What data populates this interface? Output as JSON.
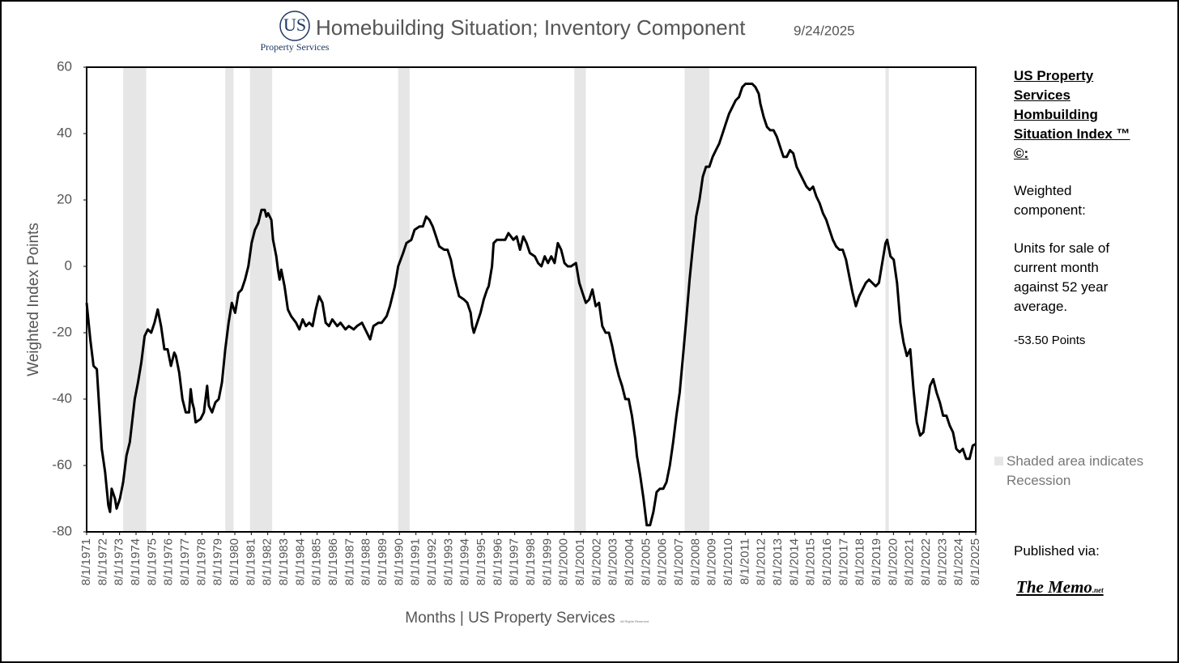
{
  "logo": {
    "mark": "US",
    "name": "Property Services"
  },
  "chart_data": {
    "type": "line",
    "title": "Homebuilding Situation; Inventory Component",
    "date": "9/24/2025",
    "xlabel": "Months | US Property Services",
    "xlabel_note": "All Rights Reserved",
    "ylabel": "Weighted Index Points",
    "xlim": [
      1971.58,
      2025.58
    ],
    "ylim": [
      -80,
      60
    ],
    "yticks": [
      60,
      40,
      20,
      0,
      -20,
      -40,
      -60,
      -80
    ],
    "xticks": [
      {
        "value": 1971.58,
        "label": "8/1/1971"
      },
      {
        "value": 1972.58,
        "label": "8/1/1972"
      },
      {
        "value": 1973.58,
        "label": "8/1/1973"
      },
      {
        "value": 1974.58,
        "label": "8/1/1974"
      },
      {
        "value": 1975.58,
        "label": "8/1/1975"
      },
      {
        "value": 1976.58,
        "label": "8/1/1976"
      },
      {
        "value": 1977.58,
        "label": "8/1/1977"
      },
      {
        "value": 1978.58,
        "label": "8/1/1978"
      },
      {
        "value": 1979.58,
        "label": "8/1/1979"
      },
      {
        "value": 1980.58,
        "label": "8/1/1980"
      },
      {
        "value": 1981.58,
        "label": "8/1/1981"
      },
      {
        "value": 1982.58,
        "label": "8/1/1982"
      },
      {
        "value": 1983.58,
        "label": "8/1/1983"
      },
      {
        "value": 1984.58,
        "label": "8/1/1984"
      },
      {
        "value": 1985.58,
        "label": "8/1/1985"
      },
      {
        "value": 1986.58,
        "label": "8/1/1986"
      },
      {
        "value": 1987.58,
        "label": "8/1/1987"
      },
      {
        "value": 1988.58,
        "label": "8/1/1988"
      },
      {
        "value": 1989.58,
        "label": "8/1/1989"
      },
      {
        "value": 1990.58,
        "label": "8/1/1990"
      },
      {
        "value": 1991.58,
        "label": "8/1/1991"
      },
      {
        "value": 1992.58,
        "label": "8/1/1992"
      },
      {
        "value": 1993.58,
        "label": "8/1/1993"
      },
      {
        "value": 1994.58,
        "label": "8/1/1994"
      },
      {
        "value": 1995.58,
        "label": "8/1/1995"
      },
      {
        "value": 1996.58,
        "label": "8/1/1996"
      },
      {
        "value": 1997.58,
        "label": "8/1/1997"
      },
      {
        "value": 1998.58,
        "label": "8/1/1998"
      },
      {
        "value": 1999.58,
        "label": "8/1/1999"
      },
      {
        "value": 2000.58,
        "label": "8/1/2000"
      },
      {
        "value": 2001.58,
        "label": "8/1/2001"
      },
      {
        "value": 2002.58,
        "label": "8/1/2002"
      },
      {
        "value": 2003.58,
        "label": "8/1/2003"
      },
      {
        "value": 2004.58,
        "label": "8/1/2004"
      },
      {
        "value": 2005.58,
        "label": "8/1/2005"
      },
      {
        "value": 2006.58,
        "label": "8/1/2006"
      },
      {
        "value": 2007.58,
        "label": "8/1/2007"
      },
      {
        "value": 2008.58,
        "label": "8/1/2008"
      },
      {
        "value": 2009.58,
        "label": "8/1/2009"
      },
      {
        "value": 2010.58,
        "label": "8/1/2010"
      },
      {
        "value": 2011.58,
        "label": "8/1/2011"
      },
      {
        "value": 2012.58,
        "label": "8/1/2012"
      },
      {
        "value": 2013.58,
        "label": "8/1/2013"
      },
      {
        "value": 2014.58,
        "label": "8/1/2014"
      },
      {
        "value": 2015.58,
        "label": "8/1/2015"
      },
      {
        "value": 2016.58,
        "label": "8/1/2016"
      },
      {
        "value": 2017.58,
        "label": "8/1/2017"
      },
      {
        "value": 2018.58,
        "label": "8/1/2018"
      },
      {
        "value": 2019.58,
        "label": "8/1/2019"
      },
      {
        "value": 2020.58,
        "label": "8/1/2020"
      },
      {
        "value": 2021.58,
        "label": "8/1/2021"
      },
      {
        "value": 2022.58,
        "label": "8/1/2022"
      },
      {
        "value": 2023.58,
        "label": "8/1/2023"
      },
      {
        "value": 2024.58,
        "label": "8/1/2024"
      },
      {
        "value": 2025.58,
        "label": "8/1/2025"
      }
    ],
    "recessions": [
      [
        1973.8,
        1975.2
      ],
      [
        1980.0,
        1980.5
      ],
      [
        1981.5,
        1982.85
      ],
      [
        1990.5,
        1991.2
      ],
      [
        2001.2,
        2001.9
      ],
      [
        2007.9,
        2009.4
      ],
      [
        2020.1,
        2020.3
      ]
    ],
    "recession_color": "#e6e6e6",
    "legend": "Shaded area indicates Recession",
    "x": [
      1971.58,
      1971.8,
      1972.0,
      1972.2,
      1972.5,
      1972.7,
      1972.9,
      1973.0,
      1973.1,
      1973.3,
      1973.4,
      1973.6,
      1973.8,
      1974.0,
      1974.2,
      1974.5,
      1974.7,
      1974.9,
      1975.1,
      1975.3,
      1975.5,
      1975.7,
      1975.9,
      1976.1,
      1976.3,
      1976.5,
      1976.7,
      1976.9,
      1977.0,
      1977.2,
      1977.4,
      1977.6,
      1977.8,
      1977.9,
      1978.0,
      1978.1,
      1978.2,
      1978.5,
      1978.7,
      1978.9,
      1979.0,
      1979.2,
      1979.4,
      1979.6,
      1979.8,
      1980.0,
      1980.2,
      1980.4,
      1980.6,
      1980.8,
      1981.0,
      1981.2,
      1981.4,
      1981.6,
      1981.8,
      1982.0,
      1982.2,
      1982.4,
      1982.5,
      1982.6,
      1982.8,
      1982.9,
      1983.1,
      1983.2,
      1983.3,
      1983.4,
      1983.6,
      1983.8,
      1984.0,
      1984.3,
      1984.5,
      1984.7,
      1984.9,
      1985.1,
      1985.3,
      1985.5,
      1985.7,
      1985.9,
      1986.1,
      1986.3,
      1986.5,
      1986.8,
      1987.0,
      1987.3,
      1987.5,
      1987.8,
      1988.0,
      1988.3,
      1988.6,
      1988.8,
      1989.0,
      1989.3,
      1989.5,
      1989.8,
      1990.0,
      1990.3,
      1990.5,
      1990.8,
      1991.0,
      1991.3,
      1991.5,
      1991.8,
      1992.0,
      1992.2,
      1992.4,
      1992.6,
      1992.8,
      1993.0,
      1993.3,
      1993.5,
      1993.7,
      1993.9,
      1994.1,
      1994.2,
      1994.5,
      1994.7,
      1994.9,
      1995.0,
      1995.1,
      1995.3,
      1995.5,
      1995.7,
      1995.9,
      1996.0,
      1996.2,
      1996.3,
      1996.5,
      1996.8,
      1997.0,
      1997.2,
      1997.5,
      1997.7,
      1997.9,
      1998.1,
      1998.3,
      1998.5,
      1998.8,
      1999.0,
      1999.2,
      1999.4,
      1999.6,
      1999.8,
      2000.0,
      2000.2,
      2000.4,
      2000.6,
      2000.8,
      2001.0,
      2001.3,
      2001.5,
      2001.7,
      2001.9,
      2002.1,
      2002.3,
      2002.5,
      2002.7,
      2002.9,
      2003.1,
      2003.3,
      2003.5,
      2003.7,
      2003.9,
      2004.1,
      2004.3,
      2004.5,
      2004.7,
      2004.9,
      2005.0,
      2005.2,
      2005.4,
      2005.6,
      2005.8,
      2006.0,
      2006.2,
      2006.4,
      2006.6,
      2006.8,
      2007.0,
      2007.2,
      2007.4,
      2007.6,
      2007.8,
      2008.0,
      2008.2,
      2008.4,
      2008.6,
      2008.8,
      2009.0,
      2009.2,
      2009.4,
      2009.6,
      2009.8,
      2010.0,
      2010.2,
      2010.4,
      2010.6,
      2010.8,
      2011.0,
      2011.2,
      2011.4,
      2011.6,
      2011.8,
      2012.0,
      2012.2,
      2012.4,
      2012.5,
      2012.7,
      2012.9,
      2013.1,
      2013.3,
      2013.5,
      2013.7,
      2013.9,
      2014.1,
      2014.3,
      2014.5,
      2014.7,
      2014.9,
      2015.1,
      2015.3,
      2015.5,
      2015.7,
      2015.9,
      2016.1,
      2016.3,
      2016.5,
      2016.7,
      2016.9,
      2017.1,
      2017.3,
      2017.5,
      2017.7,
      2017.9,
      2018.1,
      2018.3,
      2018.5,
      2018.7,
      2018.9,
      2019.1,
      2019.3,
      2019.5,
      2019.7,
      2019.9,
      2020.1,
      2020.2,
      2020.4,
      2020.6,
      2020.8,
      2021.0,
      2021.2,
      2021.4,
      2021.6,
      2021.8,
      2022.0,
      2022.2,
      2022.4,
      2022.6,
      2022.8,
      2023.0,
      2023.2,
      2023.4,
      2023.6,
      2023.8,
      2024.0,
      2024.2,
      2024.4,
      2024.6,
      2024.8,
      2025.0,
      2025.2,
      2025.4,
      2025.58
    ],
    "series": [
      {
        "name": "Inventory Component",
        "color": "#000000",
        "values": [
          -11,
          -22,
          -30,
          -31,
          -55,
          -62,
          -72,
          -74,
          -67,
          -70,
          -73,
          -70,
          -65,
          -57,
          -53,
          -40,
          -35,
          -29,
          -21,
          -19,
          -20,
          -17,
          -13,
          -18,
          -25,
          -25,
          -30,
          -26,
          -27,
          -32,
          -40,
          -44,
          -44,
          -37,
          -41,
          -43,
          -47,
          -46,
          -44,
          -36,
          -42,
          -44,
          -41,
          -40,
          -35,
          -25,
          -17,
          -11,
          -14,
          -8,
          -7,
          -4,
          0,
          7,
          11,
          13,
          17,
          17,
          15,
          16,
          14,
          8,
          3,
          -1,
          -4,
          -1,
          -6,
          -13,
          -15,
          -17,
          -19,
          -16,
          -18,
          -17,
          -18,
          -13,
          -9,
          -11,
          -17,
          -18,
          -16,
          -18,
          -17,
          -19,
          -18,
          -19,
          -18,
          -17,
          -20,
          -22,
          -18,
          -17,
          -17,
          -15,
          -12,
          -6,
          0,
          4,
          7,
          8,
          11,
          12,
          12,
          15,
          14,
          12,
          9,
          6,
          5,
          5,
          2,
          -3,
          -7,
          -9,
          -10,
          -11,
          -14,
          -18,
          -20,
          -17,
          -14,
          -10,
          -7,
          -6,
          0,
          7,
          8,
          8,
          8,
          10,
          8,
          9,
          5,
          9,
          7,
          4,
          3,
          1,
          0,
          3,
          1,
          3,
          1,
          7,
          5,
          1,
          0,
          0,
          1,
          -5,
          -8,
          -11,
          -10,
          -7,
          -12,
          -11,
          -18,
          -20,
          -20,
          -24,
          -29,
          -33,
          -36,
          -40,
          -40,
          -45,
          -52,
          -57,
          -63,
          -70,
          -78,
          -78,
          -74,
          -68,
          -67,
          -67,
          -65,
          -60,
          -53,
          -45,
          -38,
          -27,
          -16,
          -4,
          6,
          15,
          20,
          27,
          30,
          30,
          33,
          35,
          37,
          40,
          43,
          46,
          48,
          50,
          51,
          54,
          55,
          55,
          55,
          54,
          52,
          49,
          45,
          42,
          41,
          41,
          39,
          36,
          33,
          33,
          35,
          34,
          30,
          28,
          26,
          24,
          23,
          24,
          21,
          19,
          16,
          14,
          11,
          8,
          6,
          5,
          5,
          2,
          -3,
          -8,
          -12,
          -9,
          -7,
          -5,
          -4,
          -5,
          -6,
          -5,
          1,
          7,
          8,
          3,
          2,
          -5,
          -17,
          -23,
          -27,
          -25,
          -37,
          -47,
          -51,
          -50,
          -43,
          -36,
          -34,
          -38,
          -41,
          -45,
          -45,
          -48,
          -50,
          -55,
          -56,
          -55,
          -58,
          -58,
          -54,
          -53.5
        ]
      }
    ]
  },
  "side": {
    "heading": "US Property Services Hombuilding Situation Index ™ ©:",
    "p1": "Weighted component:",
    "p2": "Units for sale of current month against 52 year average.",
    "p3": "-53.50 Points",
    "published": "Published via:",
    "memo": "The Memo",
    "memo_suffix": ".net"
  }
}
